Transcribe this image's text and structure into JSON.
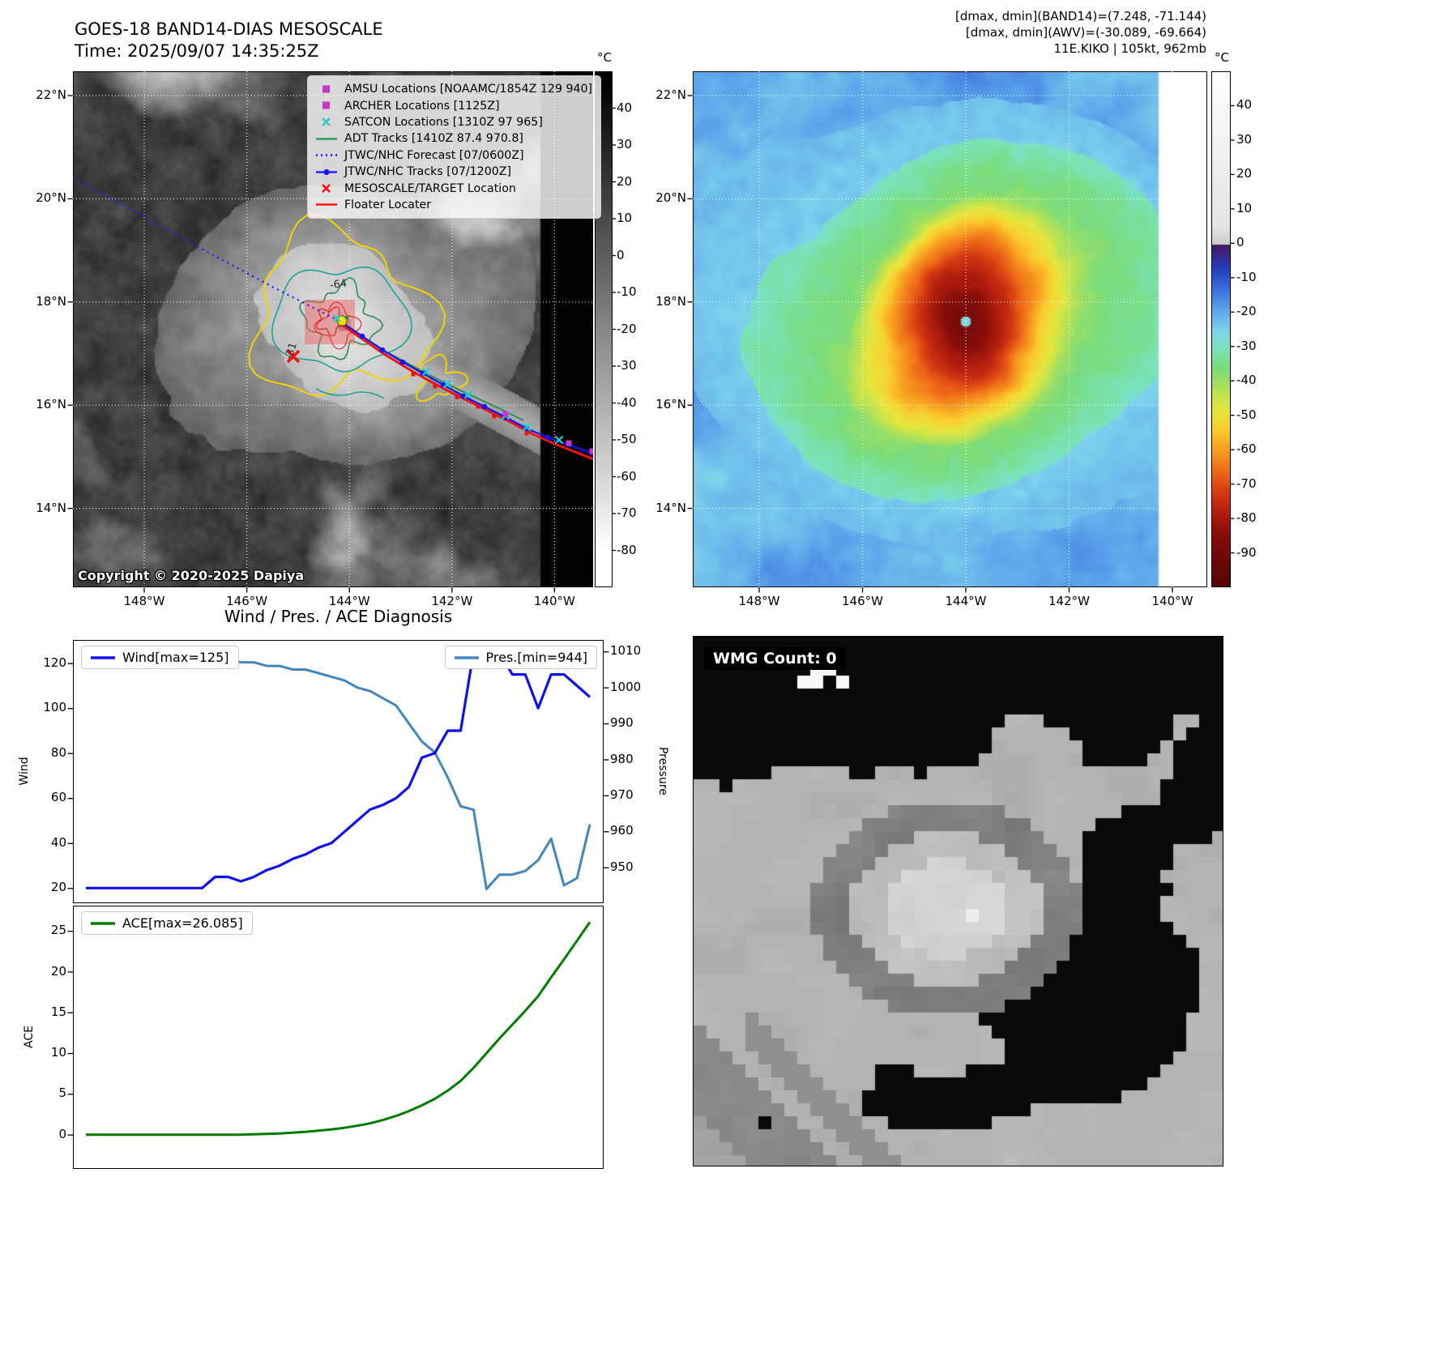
{
  "panel_tl": {
    "title": "GOES-18 BAND14-DIAS MESOSCALE",
    "time_label": "Time: 2025/09/07 14:35:25Z",
    "copyright": "Copyright © 2020-2025 Dapiya",
    "legend": [
      {
        "label": "AMSU Locations [NOAAMC/1854Z 129 940]",
        "marker": "square",
        "color": "#c734c7"
      },
      {
        "label": "ARCHER Locations [1125Z]",
        "marker": "square",
        "color": "#c734c7"
      },
      {
        "label": "SATCON Locations [1310Z 97 965]",
        "marker": "x",
        "color": "#2ec9c9"
      },
      {
        "label": "ADT Tracks [1410Z 87.4 970.8]",
        "marker": "line",
        "color": "#2e9e5b"
      },
      {
        "label": "JTWC/NHC Forecast [07/0600Z]",
        "marker": "dotted-line",
        "color": "#1414ff"
      },
      {
        "label": "JTWC/NHC Tracks [07/1200Z]",
        "marker": "line-marker",
        "color": "#1414ff"
      },
      {
        "label": "MESOSCALE/TARGET Location",
        "marker": "x",
        "color": "#ff1111"
      },
      {
        "label": "Floater Locater",
        "marker": "line",
        "color": "#ff1111"
      }
    ],
    "lat_ticks": [
      "22°N",
      "20°N",
      "18°N",
      "16°N",
      "14°N"
    ],
    "lon_ticks": [
      "148°W",
      "146°W",
      "144°W",
      "142°W",
      "140°W"
    ],
    "colorbar_unit": "°C",
    "colorbar_ticks": [
      "40",
      "30",
      "20",
      "10",
      "0",
      "-10",
      "-20",
      "-30",
      "-40",
      "-50",
      "-60",
      "-70",
      "-80"
    ],
    "contour_labels": [
      "-64",
      "-31"
    ]
  },
  "panel_tr": {
    "info_line1": "[dmax, dmin](BAND14)=(7.248, -71.144)",
    "info_line2": "[dmax, dmin](AWV)=(-30.089, -69.664)",
    "info_line3": "11E.KIKO | 105kt, 962mb",
    "lat_ticks": [
      "22°N",
      "20°N",
      "18°N",
      "16°N",
      "14°N"
    ],
    "lon_ticks": [
      "148°W",
      "146°W",
      "144°W",
      "142°W",
      "140°W"
    ],
    "colorbar_unit": "°C",
    "colorbar_ticks": [
      "40",
      "30",
      "20",
      "10",
      "0",
      "-10",
      "-20",
      "-30",
      "-40",
      "-50",
      "-60",
      "-70",
      "-80",
      "-90"
    ]
  },
  "panel_br": {
    "wmg_label": "WMG Count: 0"
  },
  "chart_data": [
    {
      "type": "line",
      "title": "Wind / Pres. / ACE Diagnosis",
      "ylabel_left": "Wind",
      "ylabel_right": "Pressure",
      "yticks_left": [
        20,
        40,
        60,
        80,
        100,
        120
      ],
      "yticks_right": [
        950,
        960,
        970,
        980,
        990,
        1000,
        1010
      ],
      "ylim_left": [
        14,
        130
      ],
      "ylim_right": [
        940.5,
        1013
      ],
      "x_axis": {
        "labels_visible": false
      },
      "series": [
        {
          "name": "Wind[max=125]",
          "color": "#0f10ea",
          "axis": "left",
          "values": [
            20,
            20,
            20,
            20,
            20,
            20,
            20,
            20,
            20,
            20,
            25,
            25,
            23,
            25,
            28,
            30,
            33,
            35,
            38,
            40,
            45,
            50,
            55,
            57,
            60,
            65,
            78,
            80,
            90,
            90,
            125,
            125,
            125,
            115,
            115,
            100,
            115,
            115,
            110,
            105
          ]
        },
        {
          "name": "Pres.[min=944]",
          "color": "#4286bd",
          "axis": "right",
          "values": [
            1009,
            1009,
            1009,
            1009,
            1009,
            1009,
            1009,
            1009,
            1009,
            1009,
            1008,
            1008,
            1007,
            1007,
            1006,
            1006,
            1005,
            1005,
            1004,
            1003,
            1002,
            1000,
            999,
            997,
            995,
            990,
            985,
            982,
            975,
            967,
            966,
            944,
            948,
            948,
            949,
            952,
            958,
            945,
            947,
            962
          ]
        }
      ]
    },
    {
      "type": "line",
      "ylabel": "ACE",
      "yticks": [
        0,
        5,
        10,
        15,
        20,
        25
      ],
      "ylim": [
        -4,
        28
      ],
      "x_axis": {
        "labels_visible": false
      },
      "series": [
        {
          "name": "ACE[max=26.085]",
          "color": "#007d00",
          "values": [
            0,
            0,
            0,
            0,
            0,
            0,
            0,
            0,
            0,
            0,
            0,
            0,
            0,
            0.05,
            0.1,
            0.15,
            0.25,
            0.35,
            0.5,
            0.65,
            0.85,
            1.1,
            1.4,
            1.8,
            2.3,
            2.9,
            3.6,
            4.4,
            5.4,
            6.6,
            8.2,
            10.0,
            11.8,
            13.5,
            15.2,
            17.0,
            19.3,
            21.5,
            23.8,
            26.085
          ]
        }
      ]
    }
  ]
}
